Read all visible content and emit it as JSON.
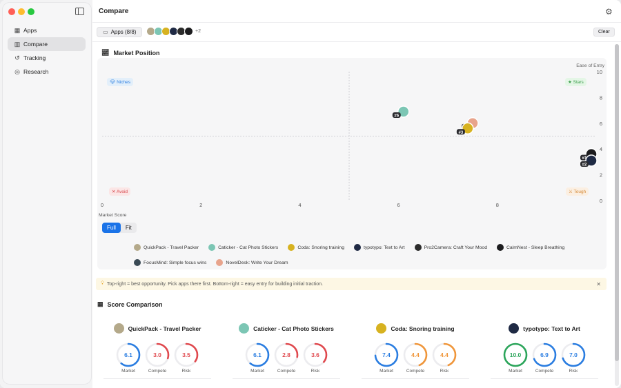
{
  "sidebar": {
    "items": [
      {
        "label": "Apps",
        "icon": "grid-icon"
      },
      {
        "label": "Compare",
        "icon": "bar-chart-icon",
        "active": true
      },
      {
        "label": "Tracking",
        "icon": "history-icon"
      },
      {
        "label": "Research",
        "icon": "target-icon"
      }
    ]
  },
  "header": {
    "title": "Compare"
  },
  "toolbar": {
    "apps_label": "Apps (8/8)",
    "more_count": "+2",
    "clear_label": "Clear"
  },
  "market_position": {
    "title": "Market Position",
    "quadrants": {
      "top_left": "Niches",
      "top_right": "Stars",
      "bottom_left": "Avoid",
      "bottom_right": "Tough"
    },
    "view_toggle": {
      "full": "Full",
      "fit": "Fit",
      "selected": "Full"
    }
  },
  "chart_data": {
    "type": "scatter",
    "xlabel": "Market Score",
    "ylabel": "Ease of Entry",
    "xlim": [
      0,
      10
    ],
    "ylim": [
      0,
      10
    ],
    "x_ticks": [
      0,
      2,
      4,
      6,
      8
    ],
    "y_ticks": [
      0,
      2,
      4,
      6,
      8,
      10
    ],
    "points": [
      {
        "name": "Caticker - Cat Photo Stickers",
        "x": 6.1,
        "y": 6.9,
        "rank": "#6",
        "color": "#7cc6b4"
      },
      {
        "name": "NovelDesk: Write Your Dream",
        "x": 7.5,
        "y": 6.0,
        "rank": "#4",
        "color": "#e8a48c"
      },
      {
        "name": "Coda: Snoring training",
        "x": 7.4,
        "y": 5.6,
        "rank": "#3",
        "color": "#d7b220"
      },
      {
        "name": "CalmNest - Sleep Breathing",
        "x": 10.0,
        "y": 3.6,
        "rank": "#1",
        "color": "#1c1c1e"
      },
      {
        "name": "typotypo: Text to Art",
        "x": 10.0,
        "y": 3.1,
        "rank": "#2",
        "color": "#1f2a44"
      }
    ]
  },
  "legend": [
    {
      "name": "QuickPack - Travel Packer",
      "color": "#b4a98a"
    },
    {
      "name": "Caticker - Cat Photo Stickers",
      "color": "#7cc6b4"
    },
    {
      "name": "Coda: Snoring training",
      "color": "#d7b220"
    },
    {
      "name": "typotypo: Text to Art",
      "color": "#1f2a44"
    },
    {
      "name": "Pro2Camera: Craft Your Mood",
      "color": "#2b2b2b"
    },
    {
      "name": "CalmNest - Sleep Breathing",
      "color": "#1c1c1e"
    },
    {
      "name": "FocusMind: Simple focus wins",
      "color": "#3a4a55"
    },
    {
      "name": "NovelDesk: Write Your Dream",
      "color": "#e8a48c"
    }
  ],
  "tip": {
    "text": "Top-right = best opportunity. Pick apps there first. Bottom-right = easy entry for building initial traction."
  },
  "score_comparison": {
    "title": "Score Comparison",
    "metric_labels": [
      "Market",
      "Compete",
      "Risk"
    ],
    "cards": [
      {
        "name": "QuickPack - Travel Packer",
        "icon_color": "#b4a98a",
        "values": [
          "6.1",
          "3.0",
          "3.5"
        ],
        "fractions": [
          0.61,
          0.3,
          0.35
        ],
        "colors": [
          "#2a7de1",
          "#e0484d",
          "#e0484d"
        ]
      },
      {
        "name": "Caticker - Cat Photo Stickers",
        "icon_color": "#7cc6b4",
        "values": [
          "6.1",
          "2.8",
          "3.6"
        ],
        "fractions": [
          0.61,
          0.28,
          0.36
        ],
        "colors": [
          "#2a7de1",
          "#e0484d",
          "#e0484d"
        ]
      },
      {
        "name": "Coda: Snoring training",
        "icon_color": "#d7b220",
        "values": [
          "7.4",
          "4.4",
          "4.4"
        ],
        "fractions": [
          0.74,
          0.44,
          0.44
        ],
        "colors": [
          "#2a7de1",
          "#f0963a",
          "#f0963a"
        ]
      },
      {
        "name": "typotypo: Text to Art",
        "icon_color": "#1f2a44",
        "values": [
          "10.0",
          "6.9",
          "7.0"
        ],
        "fractions": [
          1.0,
          0.69,
          0.7
        ],
        "colors": [
          "#2ba55a",
          "#2a7de1",
          "#2a7de1"
        ]
      }
    ]
  }
}
